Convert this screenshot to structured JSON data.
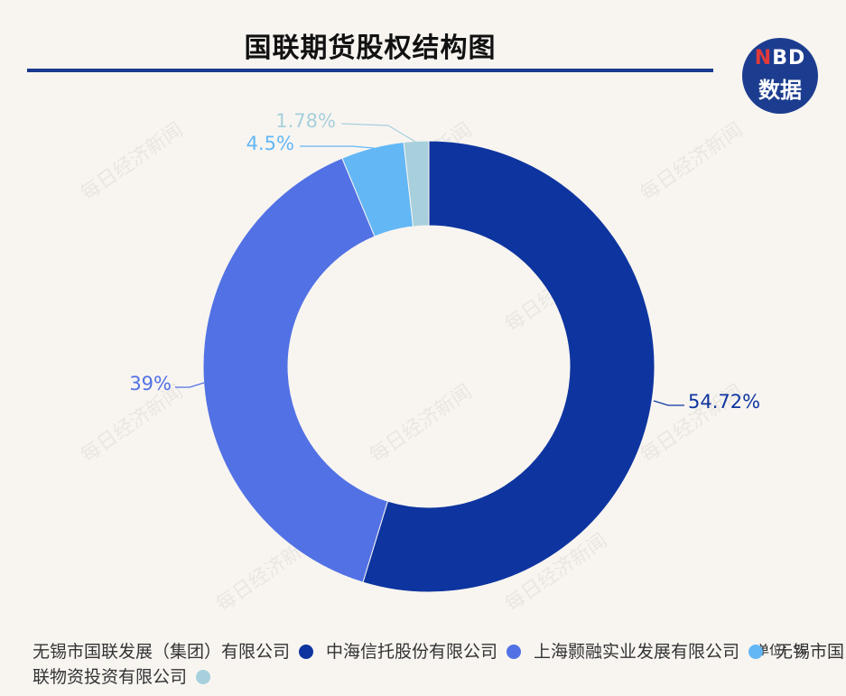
{
  "title": "国联期货股权结构图",
  "logo": {
    "line1_n": "N",
    "line1_rest": "BD",
    "line2": "数据"
  },
  "watermark": "每日经济新闻",
  "unit_label": "单位：%",
  "chart_data": {
    "type": "pie",
    "donut": true,
    "title": "国联期货股权结构图",
    "slices": [
      {
        "name": "无锡市国联发展（集团）有限公司",
        "value": 54.72,
        "label": "54.72%",
        "color": "#0e359f"
      },
      {
        "name": "中海信托股份有限公司",
        "value": 39,
        "label": "39%",
        "color": "#5271e4"
      },
      {
        "name": "上海颢融实业发展有限公司",
        "value": 4.5,
        "label": "4.5%",
        "color": "#63b7f5"
      },
      {
        "name": "无锡市国联物资投资有限公司",
        "value": 1.78,
        "label": "1.78%",
        "color": "#a7d0dc"
      }
    ],
    "legend_position": "bottom"
  }
}
